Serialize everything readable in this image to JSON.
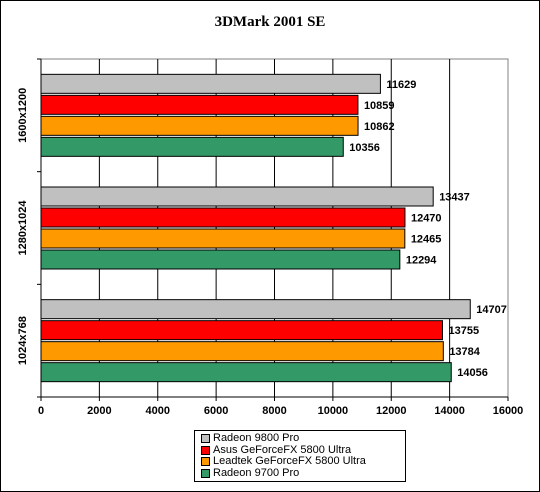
{
  "chart_data": {
    "type": "bar",
    "orientation": "horizontal",
    "title": "3DMark 2001 SE",
    "categories": [
      "1600x1200",
      "1280x1024",
      "1024x768"
    ],
    "series": [
      {
        "name": "Radeon 9800 Pro",
        "color": "#c0c0c0",
        "values": [
          11629,
          13437,
          14707
        ]
      },
      {
        "name": "Asus GeForceFX 5800 Ultra",
        "color": "#ff0000",
        "values": [
          10859,
          12470,
          13755
        ]
      },
      {
        "name": "Leadtek GeForceFX 5800 Ultra",
        "color": "#ff9900",
        "values": [
          10862,
          12465,
          13784
        ]
      },
      {
        "name": "Radeon 9700 Pro",
        "color": "#339966",
        "values": [
          10356,
          12294,
          14056
        ]
      }
    ],
    "xlim": [
      0,
      16000
    ],
    "x_ticks": [
      "0",
      "2000",
      "4000",
      "6000",
      "8000",
      "10000",
      "12000",
      "14000",
      "16000"
    ],
    "grid": "vertical",
    "legend_position": "bottom"
  }
}
